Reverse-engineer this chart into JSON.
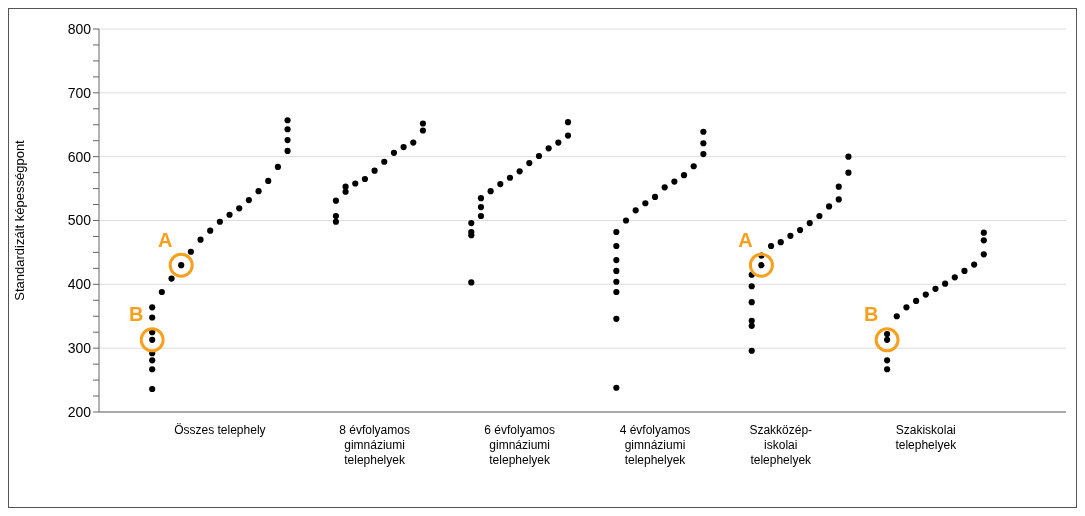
{
  "chart_data": {
    "type": "scatter",
    "ylabel": "Standardizált képességpont",
    "marker": "circle",
    "grid": "y",
    "categories": [
      null,
      null,
      null,
      null,
      null,
      null,
      null,
      null,
      null,
      null,
      null,
      null,
      "Összes telephely",
      null,
      null,
      null,
      null,
      null,
      null,
      null,
      null,
      null,
      null,
      null,
      null,
      null,
      null,
      null,
      "8 évfolyamos\ngimnáziumi\ntelephelyek",
      null,
      null,
      null,
      null,
      null,
      null,
      null,
      null,
      null,
      null,
      null,
      null,
      null,
      null,
      "6 évfolyamos\ngimnáziumi\ntelephelyek",
      null,
      null,
      null,
      null,
      null,
      null,
      null,
      null,
      null,
      null,
      null,
      null,
      null,
      "4 évfolyamos\ngimnáziumi\ntelephelyek",
      null,
      null,
      null,
      null,
      null,
      null,
      null,
      null,
      null,
      null,
      null,
      null,
      "Szakközép-\niskolai\ntelephelyek",
      null,
      null,
      null,
      null,
      null,
      null,
      null,
      null,
      null,
      null,
      null,
      null,
      null,
      null,
      "Szakiskolai\ntelephelyek",
      null,
      null,
      null,
      null,
      null,
      null,
      null,
      null,
      null,
      null,
      null,
      null,
      null,
      null
    ],
    "ylim": [
      200,
      800
    ],
    "yticks": [
      200,
      {
        "value": 225,
        "label": null
      },
      {
        "value": 250,
        "label": null
      },
      {
        "value": 275,
        "label": null
      },
      300,
      {
        "value": 325,
        "label": null
      },
      {
        "value": 350,
        "label": null
      },
      {
        "value": 375,
        "label": null
      },
      400,
      {
        "value": 425,
        "label": null
      },
      {
        "value": 450,
        "label": null
      },
      {
        "value": 475,
        "label": null
      },
      500,
      {
        "value": 525,
        "label": null
      },
      {
        "value": 550,
        "label": null
      },
      {
        "value": 575,
        "label": null
      },
      600,
      {
        "value": 625,
        "label": null
      },
      {
        "value": 650,
        "label": null
      },
      {
        "value": 675,
        "label": null
      },
      700,
      {
        "value": 725,
        "label": null
      },
      {
        "value": 750,
        "label": null
      },
      {
        "value": 775,
        "label": null
      },
      800
    ],
    "series": [
      {
        "color": "#000000",
        "values": [
          null,
          null,
          null,
          null,
          null,
          236,
          388,
          409,
          430,
          451,
          470,
          484,
          498,
          509,
          519,
          532,
          546,
          562,
          584,
          609,
          null,
          null,
          null,
          null,
          498,
          545,
          558,
          565,
          578,
          592,
          606,
          615,
          622,
          641,
          null,
          null,
          null,
          null,
          403,
          507,
          546,
          557,
          567,
          577,
          590,
          601,
          613,
          622,
          633,
          null,
          null,
          null,
          null,
          238,
          500,
          516,
          527,
          537,
          552,
          561,
          571,
          585,
          604,
          null,
          null,
          null,
          null,
          296,
          430,
          460,
          466,
          476,
          485,
          496,
          507,
          522,
          533,
          575,
          null,
          null,
          null,
          267,
          350,
          364,
          374,
          384,
          393,
          401,
          411,
          421,
          431,
          447,
          null,
          null,
          null,
          null,
          null,
          null,
          null,
          null
        ]
      },
      {
        "color": "#000000",
        "values": [
          null,
          null,
          null,
          null,
          null,
          267,
          null,
          null,
          null,
          null,
          null,
          null,
          null,
          null,
          null,
          null,
          null,
          null,
          null,
          626,
          null,
          null,
          null,
          null,
          507,
          553,
          null,
          null,
          null,
          null,
          null,
          null,
          null,
          652,
          null,
          null,
          null,
          null,
          477,
          521,
          null,
          null,
          null,
          null,
          null,
          null,
          null,
          null,
          654,
          null,
          null,
          null,
          null,
          346,
          null,
          null,
          null,
          null,
          null,
          null,
          null,
          null,
          621,
          null,
          null,
          null,
          null,
          335,
          445,
          null,
          null,
          null,
          null,
          null,
          null,
          null,
          553,
          600,
          null,
          null,
          null,
          281,
          null,
          null,
          null,
          null,
          null,
          null,
          null,
          null,
          null,
          469,
          null,
          null,
          null,
          null,
          null,
          null,
          null,
          null
        ]
      },
      {
        "color": "#000000",
        "values": [
          null,
          null,
          null,
          null,
          null,
          281,
          null,
          null,
          null,
          null,
          null,
          null,
          null,
          null,
          null,
          null,
          null,
          null,
          null,
          643,
          null,
          null,
          null,
          null,
          531,
          null,
          null,
          null,
          null,
          null,
          null,
          null,
          null,
          null,
          null,
          null,
          null,
          null,
          482,
          535,
          null,
          null,
          null,
          null,
          null,
          null,
          null,
          null,
          null,
          null,
          null,
          null,
          null,
          388,
          null,
          null,
          null,
          null,
          null,
          null,
          null,
          null,
          639,
          null,
          null,
          null,
          null,
          343,
          null,
          null,
          null,
          null,
          null,
          null,
          null,
          null,
          null,
          null,
          null,
          null,
          null,
          313,
          null,
          null,
          null,
          null,
          null,
          null,
          null,
          null,
          null,
          481,
          null,
          null,
          null,
          null,
          null,
          null,
          null,
          null
        ]
      },
      {
        "color": "#000000",
        "values": [
          null,
          null,
          null,
          null,
          null,
          292,
          null,
          null,
          null,
          null,
          null,
          null,
          null,
          null,
          null,
          null,
          null,
          null,
          null,
          657,
          null,
          null,
          null,
          null,
          null,
          null,
          null,
          null,
          null,
          null,
          null,
          null,
          null,
          null,
          null,
          null,
          null,
          null,
          496,
          null,
          null,
          null,
          null,
          null,
          null,
          null,
          null,
          null,
          null,
          null,
          null,
          null,
          null,
          404,
          null,
          null,
          null,
          null,
          null,
          null,
          null,
          null,
          null,
          null,
          null,
          null,
          null,
          372,
          null,
          null,
          null,
          null,
          null,
          null,
          null,
          null,
          null,
          null,
          null,
          null,
          null,
          322,
          null,
          null,
          null,
          null,
          null,
          null,
          null,
          null,
          null,
          null,
          null,
          null,
          null,
          null,
          null,
          null,
          null,
          null
        ]
      },
      {
        "color": "#000000",
        "values": [
          null,
          null,
          null,
          null,
          null,
          313,
          null,
          null,
          null,
          null,
          null,
          null,
          null,
          null,
          null,
          null,
          null,
          null,
          null,
          null,
          null,
          null,
          null,
          null,
          null,
          null,
          null,
          null,
          null,
          null,
          null,
          null,
          null,
          null,
          null,
          null,
          null,
          null,
          null,
          null,
          null,
          null,
          null,
          null,
          null,
          null,
          null,
          null,
          null,
          null,
          null,
          null,
          null,
          421,
          null,
          null,
          null,
          null,
          null,
          null,
          null,
          null,
          null,
          null,
          null,
          null,
          null,
          397,
          null,
          null,
          null,
          null,
          null,
          null,
          null,
          null,
          null,
          null,
          null,
          null,
          null,
          null,
          null,
          null,
          null,
          null,
          null,
          null,
          null,
          null,
          null,
          null,
          null,
          null,
          null,
          null,
          null,
          null,
          null,
          null
        ]
      },
      {
        "color": "#000000",
        "values": [
          null,
          null,
          null,
          null,
          null,
          325,
          null,
          null,
          null,
          null,
          null,
          null,
          null,
          null,
          null,
          null,
          null,
          null,
          null,
          null,
          null,
          null,
          null,
          null,
          null,
          null,
          null,
          null,
          null,
          null,
          null,
          null,
          null,
          null,
          null,
          null,
          null,
          null,
          null,
          null,
          null,
          null,
          null,
          null,
          null,
          null,
          null,
          null,
          null,
          null,
          null,
          null,
          null,
          438,
          null,
          null,
          null,
          null,
          null,
          null,
          null,
          null,
          null,
          null,
          null,
          null,
          null,
          415,
          null,
          null,
          null,
          null,
          null,
          null,
          null,
          null,
          null,
          null,
          null,
          null,
          null,
          null,
          null,
          null,
          null,
          null,
          null,
          null,
          null,
          null,
          null,
          null,
          null,
          null,
          null,
          null,
          null,
          null,
          null,
          null
        ]
      },
      {
        "color": "#000000",
        "values": [
          null,
          null,
          null,
          null,
          null,
          348,
          null,
          null,
          null,
          null,
          null,
          null,
          null,
          null,
          null,
          null,
          null,
          null,
          null,
          null,
          null,
          null,
          null,
          null,
          null,
          null,
          null,
          null,
          null,
          null,
          null,
          null,
          null,
          null,
          null,
          null,
          null,
          null,
          null,
          null,
          null,
          null,
          null,
          null,
          null,
          null,
          null,
          null,
          null,
          null,
          null,
          null,
          null,
          460,
          null,
          null,
          null,
          null,
          null,
          null,
          null,
          null,
          null,
          null,
          null,
          null,
          null,
          null,
          null,
          null,
          null,
          null,
          null,
          null,
          null,
          null,
          null,
          null,
          null,
          null,
          null,
          null,
          null,
          null,
          null,
          null,
          null,
          null,
          null,
          null,
          null,
          null,
          null,
          null,
          null,
          null,
          null,
          null,
          null,
          null
        ]
      },
      {
        "type": "scatter",
        "color": "#f5a01e",
        "values": [
          null,
          null,
          null,
          null,
          null,
          313,
          null,
          null,
          430,
          null,
          null,
          null,
          null,
          null,
          null,
          null,
          null,
          null,
          null,
          null,
          null,
          null,
          null,
          null,
          null,
          null,
          null,
          null,
          null,
          null,
          null,
          null,
          null,
          null,
          null,
          null,
          null,
          null,
          null,
          null,
          null,
          null,
          null,
          null,
          null,
          null,
          null,
          null,
          null,
          null,
          null,
          null,
          null,
          null,
          null,
          null,
          null,
          null,
          null,
          null,
          null,
          null,
          null,
          null,
          null,
          null,
          null,
          null,
          430,
          null,
          null,
          null,
          null,
          null,
          null,
          null,
          null,
          null,
          null,
          null,
          null,
          313,
          null,
          null,
          null,
          null,
          null,
          null,
          null,
          null,
          null,
          null,
          null,
          null,
          null,
          null,
          null,
          null,
          null,
          null
        ],
        "value_labels": [
          null,
          null,
          null,
          null,
          null,
          "B",
          null,
          null,
          "A",
          null,
          null,
          null,
          null,
          null,
          null,
          null,
          null,
          null,
          null,
          null,
          null,
          null,
          null,
          null,
          null,
          null,
          null,
          null,
          null,
          null,
          null,
          null,
          null,
          null,
          null,
          null,
          null,
          null,
          null,
          null,
          null,
          null,
          null,
          null,
          null,
          null,
          null,
          null,
          null,
          null,
          null,
          null,
          null,
          null,
          null,
          null,
          null,
          null,
          null,
          null,
          null,
          null,
          null,
          null,
          null,
          null,
          null,
          null,
          "A",
          null,
          null,
          null,
          null,
          null,
          null,
          null,
          null,
          null,
          null,
          null,
          null,
          "B",
          null,
          null,
          null,
          null,
          null,
          null,
          null,
          null,
          null,
          null,
          null,
          null,
          null,
          null,
          null,
          null,
          null,
          null
        ]
      },
      {
        "color": "#000000",
        "values": [
          null,
          null,
          null,
          null,
          null,
          364,
          null,
          null,
          null,
          null,
          null,
          null,
          null,
          null,
          null,
          null,
          null,
          null,
          null,
          null,
          null,
          null,
          null,
          null,
          null,
          null,
          null,
          null,
          null,
          null,
          null,
          null,
          null,
          null,
          null,
          null,
          null,
          null,
          null,
          null,
          null,
          null,
          null,
          null,
          null,
          null,
          null,
          null,
          null,
          null,
          null,
          null,
          null,
          482,
          null,
          null,
          null,
          null,
          null,
          null,
          null,
          null,
          null,
          null,
          null,
          null,
          null,
          null,
          null,
          null,
          null,
          null,
          null,
          null,
          null,
          null,
          null,
          null,
          null,
          null,
          null,
          null,
          null,
          null,
          null,
          null,
          null,
          null,
          null,
          null,
          null,
          null,
          null,
          null,
          null,
          null,
          null,
          null,
          null,
          null
        ]
      }
    ]
  }
}
